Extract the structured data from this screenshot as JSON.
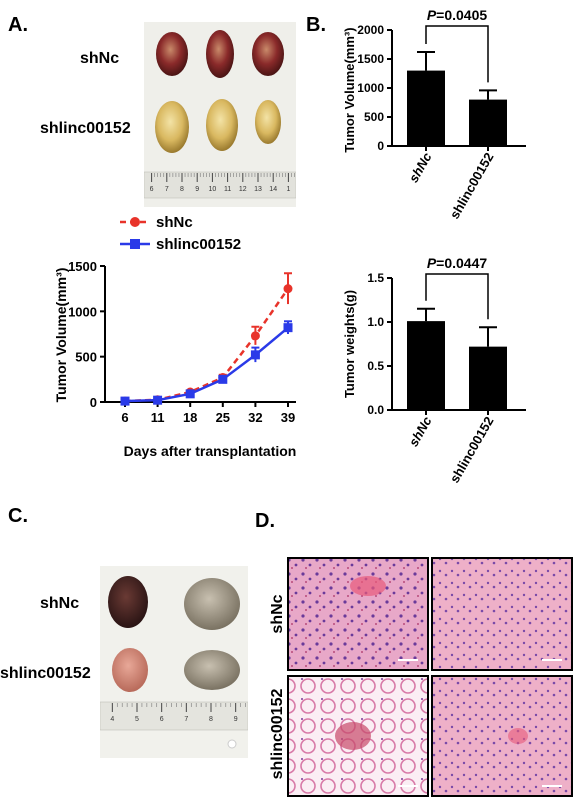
{
  "panels": {
    "A": "A.",
    "B": "B.",
    "C": "C.",
    "D": "D."
  },
  "photo_a": {
    "row_labels": [
      "shNc",
      "shlinc00152"
    ],
    "ruler_ticks": [
      "6",
      "7",
      "8",
      "9",
      "10",
      "11",
      "12",
      "13",
      "14",
      "1"
    ]
  },
  "photo_c": {
    "row_labels": [
      "shNc",
      "shlinc00152"
    ],
    "ruler_ticks": [
      "4",
      "5",
      "6",
      "7",
      "8",
      "9"
    ]
  },
  "histology": {
    "row_labels": [
      "shNc",
      "shlinc00152"
    ]
  },
  "chart_data": [
    {
      "id": "growth",
      "type": "line",
      "xlabel": "Days after transplantation",
      "ylabel": "Tumor Volume(mm³)",
      "categories": [
        "6",
        "11",
        "18",
        "25",
        "32",
        "39"
      ],
      "yticks": [
        "0",
        "500",
        "1000",
        "1500"
      ],
      "ylim": [
        0,
        1500
      ],
      "legend_placement": "top-left",
      "series": [
        {
          "name": "shNc",
          "color": "#e8332a",
          "values": [
            10,
            25,
            110,
            270,
            730,
            1250
          ],
          "errors": [
            5,
            8,
            15,
            30,
            100,
            170
          ],
          "style": "dashed",
          "marker": "circle"
        },
        {
          "name": "shlinc00152",
          "color": "#2a3ae8",
          "values": [
            10,
            20,
            90,
            250,
            520,
            820
          ],
          "errors": [
            5,
            6,
            12,
            25,
            80,
            70
          ],
          "style": "solid",
          "marker": "square"
        }
      ]
    },
    {
      "id": "volume",
      "type": "bar",
      "ylabel": "Tumor Volume(mm³)",
      "categories": [
        "shNc",
        "shlinc00152"
      ],
      "values": [
        1300,
        800
      ],
      "errors": [
        320,
        160
      ],
      "yticks": [
        "0",
        "500",
        "1000",
        "1500",
        "2000"
      ],
      "ylim": [
        0,
        2000
      ],
      "p_label": "P",
      "p_value": "=0.0405"
    },
    {
      "id": "weight",
      "type": "bar",
      "ylabel": "Tumor weights(g)",
      "categories": [
        "shNc",
        "shlinc00152"
      ],
      "values": [
        1.01,
        0.72
      ],
      "errors": [
        0.14,
        0.22
      ],
      "yticks": [
        "0.0",
        "0.5",
        "1.0",
        "1.5"
      ],
      "ylim": [
        0,
        1.5
      ],
      "p_label": "P",
      "p_value": "=0.0447"
    }
  ]
}
